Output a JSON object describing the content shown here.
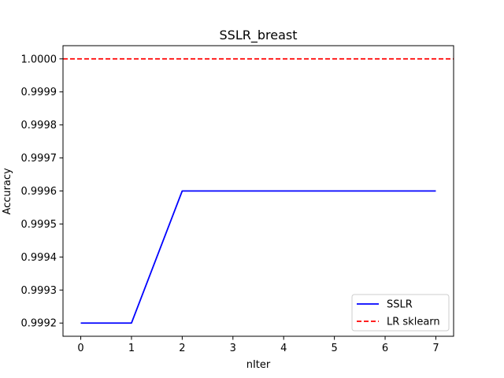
{
  "chart_data": {
    "type": "line",
    "title": "SSLR_breast",
    "xlabel": "nIter",
    "ylabel": "Accuracy",
    "xlim": [
      -0.35,
      7.35
    ],
    "ylim": [
      0.99916,
      1.00004
    ],
    "x_ticks": [
      0,
      1,
      2,
      3,
      4,
      5,
      6,
      7
    ],
    "y_ticks": [
      0.9992,
      0.9993,
      0.9994,
      0.9995,
      0.9996,
      0.9997,
      0.9998,
      0.9999,
      1.0
    ],
    "y_tick_labels": [
      "0.9992",
      "0.9993",
      "0.9994",
      "0.9995",
      "0.9996",
      "0.9997",
      "0.9998",
      "0.9999",
      "1.0000"
    ],
    "grid": false,
    "legend_position": "bottom-right",
    "series": [
      {
        "name": "SSLR",
        "style": "solid",
        "color": "#0000ff",
        "x": [
          0,
          1,
          2,
          3,
          4,
          5,
          6,
          7
        ],
        "y": [
          0.9992,
          0.9992,
          0.9996,
          0.9996,
          0.9996,
          0.9996,
          0.9996,
          0.9996
        ]
      },
      {
        "name": "LR sklearn",
        "style": "dashed",
        "color": "#ff0000",
        "y_constant": 1.0
      }
    ]
  }
}
